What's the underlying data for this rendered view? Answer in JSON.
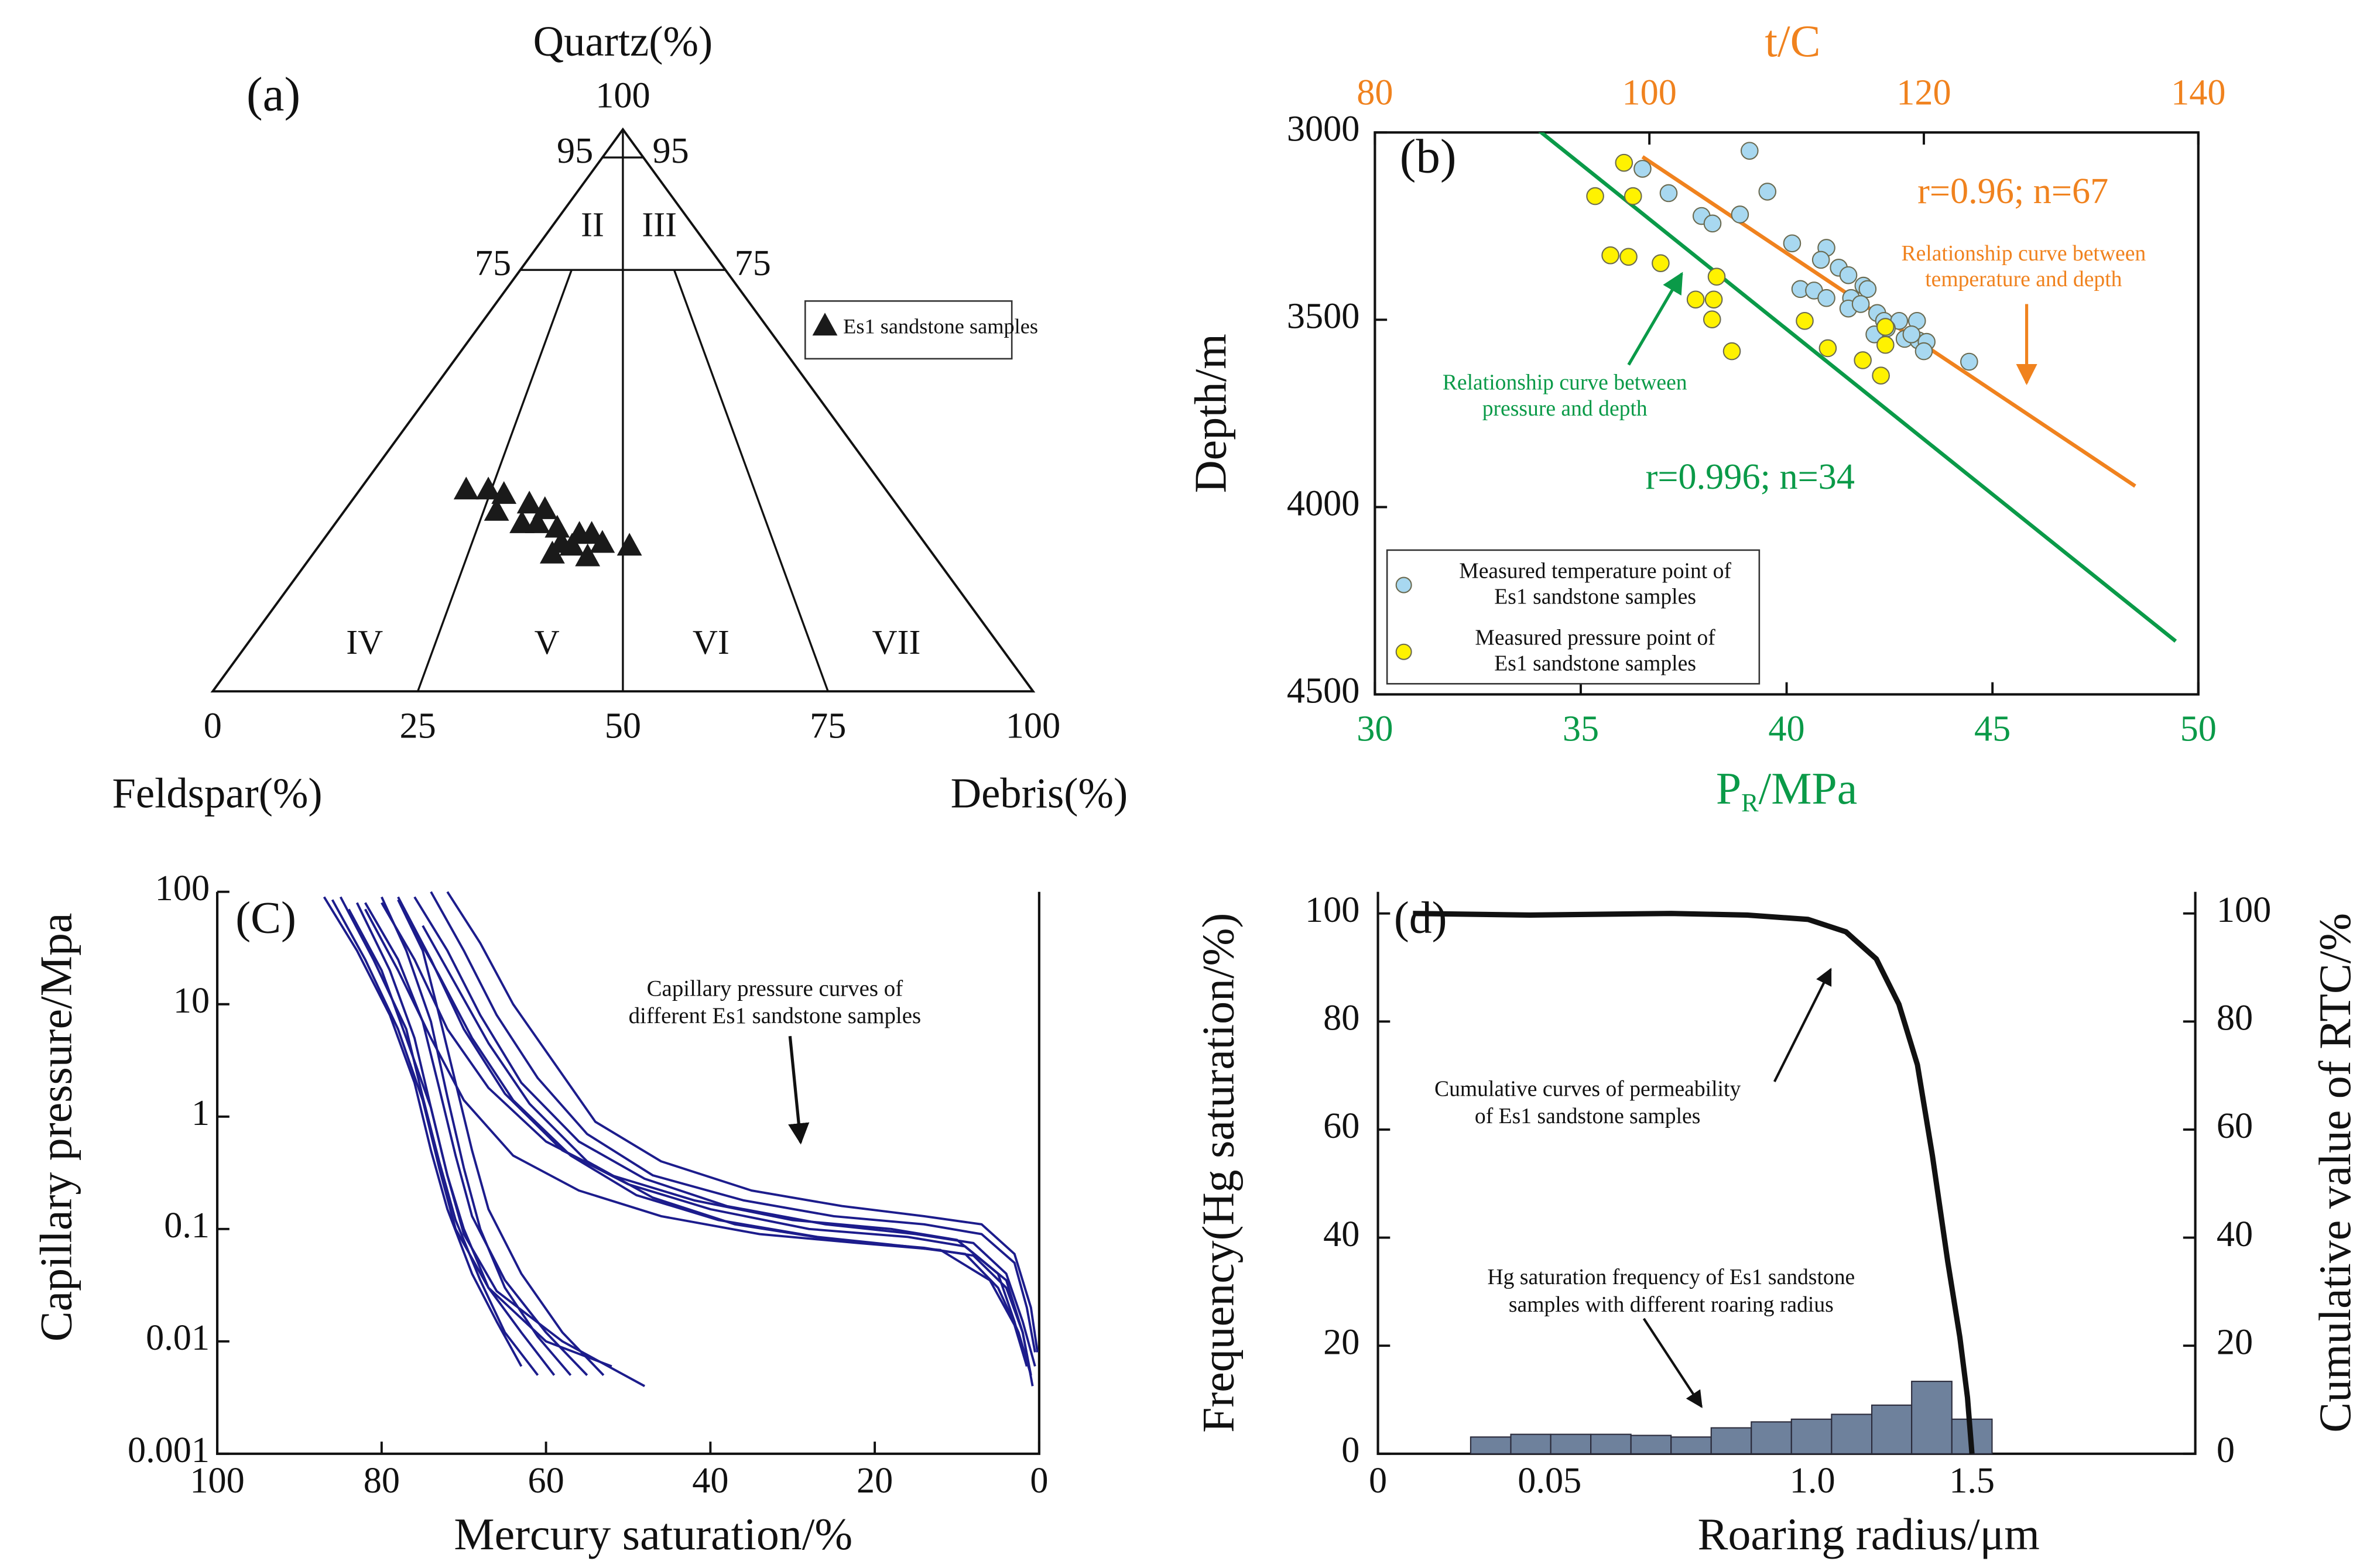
{
  "chart_data": [
    {
      "type": "ternary",
      "label": "(a)",
      "top_label": "Quartz(%)",
      "left_label": "Feldspar(%)",
      "right_label": "Debris(%)",
      "xlim": [
        0,
        100
      ],
      "xticks": [
        0,
        25,
        50,
        75,
        100
      ],
      "zlim": [
        0,
        100
      ],
      "zticks": [
        75,
        95,
        100
      ],
      "regions": [
        "II",
        "III",
        "IV",
        "V",
        "VI",
        "VII"
      ],
      "series": [
        {
          "name": "Es1 sandstone samples",
          "color": "#1a1a1a",
          "x": [
            30.9,
            33.6,
            35.5,
            34.6,
            38.6,
            40.5,
            37.7,
            39.6,
            42.0,
            44.7,
            46.2,
            42.5,
            41.4,
            43.8,
            45.7,
            47.5,
            50.8
          ],
          "quartz": [
            35.7,
            35.7,
            34.9,
            31.9,
            33.2,
            32.2,
            29.7,
            29.7,
            28.9,
            27.8,
            27.8,
            26.2,
            24.3,
            25.7,
            23.8,
            26.2,
            25.7
          ]
        }
      ]
    },
    {
      "type": "scatter",
      "label": "(b)",
      "xlabel": {
        "main": "P",
        "sub": "R",
        "rest": "/MPa"
      },
      "x2label": "t/C",
      "ylabel": "Depth/m",
      "xlim": [
        30,
        50
      ],
      "xticks": [
        30,
        35,
        40,
        45,
        50
      ],
      "xcolor": "#0a9a48",
      "x2lim": [
        80,
        140
      ],
      "x2ticks": [
        80,
        100,
        120,
        140
      ],
      "x2color": "#f0821e",
      "ylim": [
        3000,
        4500
      ],
      "yticks": [
        3000,
        3500,
        4000,
        4500
      ],
      "y_inverted": true,
      "series": [
        {
          "name": [
            "Measured temperature point of",
            "Es1 sandstone samples"
          ],
          "color": "#a8d8f0",
          "axis": "x2",
          "x": [
            99.5,
            107.3,
            106.6,
            108.6,
            101.4,
            103.8,
            104.6,
            110.4,
            112.9,
            112.5,
            113.8,
            114.5,
            115.6,
            115.9,
            111.0,
            112.0,
            112.9,
            114.7,
            114.5,
            115.4,
            116.6,
            117.1,
            118.2,
            119.5,
            117.3,
            116.4,
            118.6,
            119.6,
            120.2,
            119.1,
            120.0,
            123.3
          ],
          "values": [
            3097,
            3049,
            3219,
            3158,
            3162,
            3223,
            3243,
            3296,
            3308,
            3340,
            3361,
            3381,
            3409,
            3418,
            3418,
            3422,
            3442,
            3442,
            3470,
            3458,
            3482,
            3503,
            3503,
            3503,
            3523,
            3539,
            3551,
            3555,
            3559,
            3539,
            3584,
            3612
          ]
        },
        {
          "name": [
            "Measured pressure point of",
            "Es1 sandstone samples"
          ],
          "color": "#fff200",
          "x": [
            36.05,
            36.27,
            35.35,
            35.72,
            36.16,
            36.94,
            38.3,
            37.79,
            38.23,
            38.19,
            38.67,
            40.44,
            41.0,
            42.4,
            42.4,
            41.85,
            42.29
          ],
          "values": [
            3081,
            3170,
            3170,
            3328,
            3332,
            3349,
            3385,
            3446,
            3446,
            3499,
            3584,
            3503,
            3576,
            3519,
            3567,
            3608,
            3649
          ]
        }
      ],
      "fits": [
        {
          "axis": "x2",
          "color": "#f0821e",
          "x": [
            99.5,
            135.4
          ],
          "values": [
            3065,
            3944
          ],
          "label": "r=0.96; n=67",
          "note": [
            "Relationship curve between",
            "temperature and depth"
          ]
        },
        {
          "color": "#0a9a48",
          "x": [
            33.95,
            49.45
          ],
          "values": [
            2992,
            4358
          ],
          "label": "r=0.996; n=34",
          "note": [
            "Relationship curve between",
            "pressure and depth"
          ]
        }
      ]
    },
    {
      "type": "line",
      "label": "(C)",
      "xlabel": "Mercury saturation/%",
      "ylabel": "Capillary pressure/Mpa",
      "xlim": [
        100,
        0
      ],
      "xticks": [
        100,
        80,
        60,
        40,
        20,
        0
      ],
      "ylim": [
        0.001,
        100
      ],
      "yticks": [
        100,
        10,
        1,
        0.1,
        0.01,
        0.001
      ],
      "log_y": true,
      "color": "#1c1c8c",
      "note": [
        "Capillary pressure curves of",
        "different Es1 sandstone samples"
      ],
      "series": [
        {
          "x": [
            87,
            83,
            79,
            76,
            74,
            72,
            69,
            66,
            63
          ],
          "values": [
            90,
            30,
            8,
            2,
            0.5,
            0.15,
            0.04,
            0.015,
            0.006
          ]
        },
        {
          "x": [
            85,
            81,
            77,
            75,
            73,
            71,
            68,
            65,
            61
          ],
          "values": [
            90,
            25,
            6,
            1.5,
            0.4,
            0.12,
            0.035,
            0.012,
            0.005
          ]
        },
        {
          "x": [
            83,
            79,
            76,
            74,
            72,
            70,
            67,
            63,
            59
          ],
          "values": [
            80,
            20,
            5,
            1.2,
            0.3,
            0.1,
            0.03,
            0.012,
            0.005
          ]
        },
        {
          "x": [
            80,
            77,
            74,
            72,
            70,
            68,
            65,
            61,
            57
          ],
          "values": [
            90,
            30,
            7,
            1.5,
            0.35,
            0.1,
            0.03,
            0.011,
            0.005
          ]
        },
        {
          "x": [
            78,
            75,
            73,
            71,
            69,
            67,
            63,
            58,
            53
          ],
          "values": [
            85,
            30,
            8,
            2,
            0.5,
            0.15,
            0.04,
            0.012,
            0.005
          ]
        },
        {
          "x": [
            86,
            82,
            78,
            75,
            73,
            71,
            67,
            60,
            52
          ],
          "values": [
            85,
            25,
            6,
            1.4,
            0.35,
            0.1,
            0.03,
            0.01,
            0.006
          ]
        },
        {
          "x": [
            84,
            80,
            77,
            74,
            72,
            70,
            66,
            58,
            48
          ],
          "values": [
            70,
            20,
            5,
            1.2,
            0.3,
            0.09,
            0.028,
            0.01,
            0.004
          ]
        },
        {
          "x": [
            82,
            78,
            75,
            73,
            71,
            69,
            65,
            60,
            55
          ],
          "values": [
            80,
            25,
            7,
            1.8,
            0.45,
            0.13,
            0.035,
            0.012,
            0.005
          ]
        },
        {
          "x": [
            80,
            76,
            72,
            67,
            60,
            52,
            42,
            30,
            18,
            10,
            5,
            3,
            1.5
          ],
          "values": [
            80,
            25,
            6,
            1.8,
            0.6,
            0.3,
            0.18,
            0.12,
            0.1,
            0.08,
            0.04,
            0.015,
            0.006
          ]
        },
        {
          "x": [
            78,
            74,
            70,
            65,
            58,
            50,
            40,
            28,
            16,
            9,
            4,
            2,
            1
          ],
          "values": [
            90,
            25,
            6,
            1.6,
            0.5,
            0.25,
            0.15,
            0.1,
            0.085,
            0.07,
            0.035,
            0.012,
            0.005
          ]
        },
        {
          "x": [
            76,
            72,
            68,
            63,
            56,
            48,
            38,
            26,
            15,
            8,
            4,
            2,
            0.5
          ],
          "values": [
            90,
            30,
            8,
            2,
            0.6,
            0.28,
            0.16,
            0.11,
            0.09,
            0.075,
            0.04,
            0.015,
            0.006
          ]
        },
        {
          "x": [
            74,
            70,
            66,
            61,
            55,
            47,
            36,
            25,
            14,
            7,
            3,
            1.5,
            0.5
          ],
          "values": [
            100,
            30,
            8,
            2.2,
            0.7,
            0.3,
            0.18,
            0.13,
            0.11,
            0.09,
            0.05,
            0.02,
            0.008
          ]
        },
        {
          "x": [
            72,
            68,
            64,
            59,
            54,
            46,
            35,
            24,
            14,
            7,
            3,
            1,
            0.2
          ],
          "values": [
            100,
            35,
            10,
            3,
            0.9,
            0.4,
            0.22,
            0.16,
            0.13,
            0.11,
            0.06,
            0.02,
            0.008
          ]
        },
        {
          "x": [
            82,
            78,
            74,
            70,
            64,
            56,
            46,
            34,
            22,
            12,
            6,
            3,
            1.5
          ],
          "values": [
            70,
            20,
            5,
            1.4,
            0.45,
            0.22,
            0.13,
            0.09,
            0.075,
            0.065,
            0.035,
            0.014,
            0.006
          ]
        },
        {
          "x": [
            77,
            73,
            69,
            64,
            57,
            49,
            39,
            27,
            16,
            9,
            5,
            2.5,
            1
          ],
          "values": [
            60,
            18,
            5,
            1.4,
            0.45,
            0.2,
            0.12,
            0.085,
            0.07,
            0.06,
            0.03,
            0.012,
            0.005
          ]
        },
        {
          "x": [
            75,
            71,
            67,
            62,
            55,
            47,
            37,
            25,
            14,
            8,
            4,
            2,
            0.8
          ],
          "values": [
            50,
            15,
            4.5,
            1.3,
            0.4,
            0.19,
            0.11,
            0.08,
            0.068,
            0.058,
            0.03,
            0.012,
            0.004
          ]
        }
      ]
    },
    {
      "type": "histogram",
      "label": "(d)",
      "xlabel": "Roaring radius/μm",
      "ylabel": "Frequency(Hg saturation/%)",
      "y2label": "Cumulative value of RTC/%",
      "xlim": [
        0,
        2.2
      ],
      "xticks": [
        0,
        0.05,
        {
          "value": 1,
          "label": "1.0"
        },
        1.5
      ],
      "ylim": [
        0,
        104
      ],
      "yticks": [
        0,
        20,
        40,
        60,
        80,
        100
      ],
      "y2lim": [
        0,
        104
      ],
      "y2ticks": [
        0,
        20,
        40,
        60,
        80,
        100
      ],
      "bins": [
        0.027,
        0.0387,
        0.054,
        0.199,
        0.344,
        0.489,
        0.634,
        0.779,
        0.924,
        1.06,
        1.186,
        1.311,
        1.437,
        1.563
      ],
      "values": [
        3.1,
        3.6,
        3.6,
        3.6,
        3.4,
        3.1,
        4.8,
        5.9,
        6.4,
        7.3,
        9.0,
        13.4,
        6.4
      ],
      "color": "#6e819c",
      "series": [
        {
          "axis": "y2",
          "color": "#111111",
          "x": [
            0.0102,
            0.0442,
            0.489,
            0.764,
            0.984,
            1.105,
            1.2,
            1.271,
            1.329,
            1.376,
            1.424,
            1.462,
            1.486,
            1.5
          ],
          "values": [
            100,
            99.7,
            100,
            99.7,
            98.9,
            96.6,
            91.6,
            83.2,
            72,
            55.2,
            35.6,
            21.6,
            10.4,
            0
          ]
        }
      ],
      "notes": [
        [
          "Cumulative curves of permeability",
          "of Es1 sandstone samples"
        ],
        [
          "Hg saturation frequency of Es1 sandstone",
          "samples with different roaring radius"
        ]
      ]
    }
  ]
}
